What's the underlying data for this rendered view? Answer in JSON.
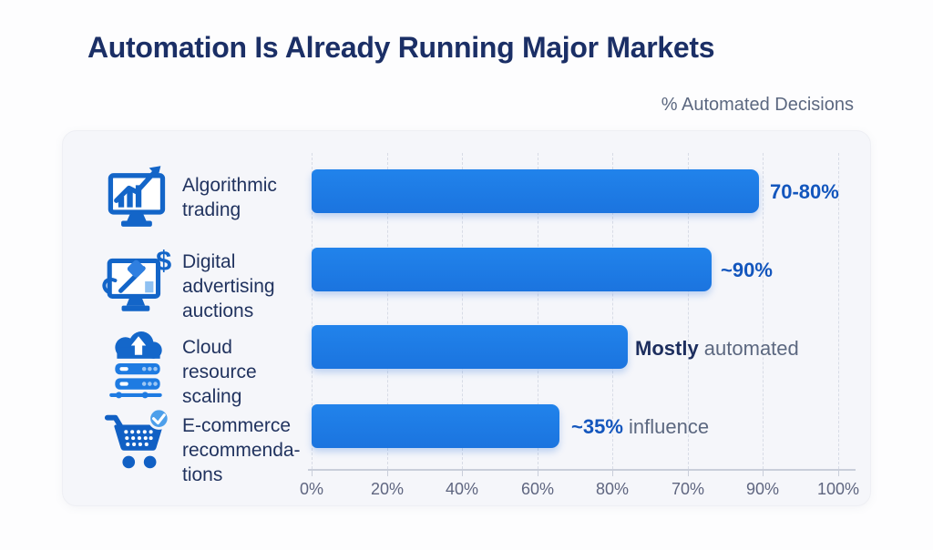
{
  "header": {
    "title": "Automation Is Already Running Major Markets",
    "axis_caption": "% Automated Decisions"
  },
  "chart_data": {
    "type": "bar",
    "orientation": "horizontal",
    "title": "Automation Is Already Running Major Markets",
    "value_axis_caption": "% Automated Decisions",
    "grid": "vertical dashed gridlines at each tick",
    "x_tick_labels": [
      "0%",
      "20%",
      "40%",
      "60%",
      "80%",
      "70%",
      "90%",
      "100%"
    ],
    "axis_note": "tick labels appear in this exact non-monotonic order in the source image",
    "categories": [
      "Algorithmic trading",
      "Digital advertising auctions",
      "Cloud resource scaling",
      "E-commerce recommendations"
    ],
    "rows": [
      {
        "category": "Algorithmic trading",
        "label_lines": [
          "Algorithmic",
          "trading"
        ],
        "icon": "monitor-chart-icon",
        "bar_length_pct": 85,
        "value_strong": "70-80%",
        "value_rest": ""
      },
      {
        "category": "Digital advertising auctions",
        "label_lines": [
          "Digital",
          "advertising",
          "auctions"
        ],
        "icon": "monitor-auction-dollar-icon",
        "bar_length_pct": 76,
        "value_strong": "~90%",
        "value_rest": ""
      },
      {
        "category": "Cloud resource scaling",
        "label_lines": [
          "Cloud",
          "resource",
          "scaling"
        ],
        "icon": "cloud-server-icon",
        "bar_length_pct": 60,
        "value_strong": "Mostly",
        "value_rest": " automated"
      },
      {
        "category": "E-commerce recommendations",
        "label_lines": [
          "E-commerce",
          "recommenda-",
          "tions"
        ],
        "icon": "cart-check-icon",
        "bar_length_pct": 47,
        "value_strong": "~35%",
        "value_rest": " influence"
      }
    ]
  },
  "colors": {
    "page_bg": "#FDFDFE",
    "panel_bg": "#F5F6FA",
    "title": "#1B2F66",
    "caption": "#5C6880",
    "grid": "#D8DCE6",
    "bar": "#1B74DF",
    "value_blue": "#1356BD",
    "value_navy": "#1D2E5E",
    "value_rest": "#5C6880",
    "icon_blue": "#1365C8",
    "icon_light_blue": "#8FC1F2"
  }
}
